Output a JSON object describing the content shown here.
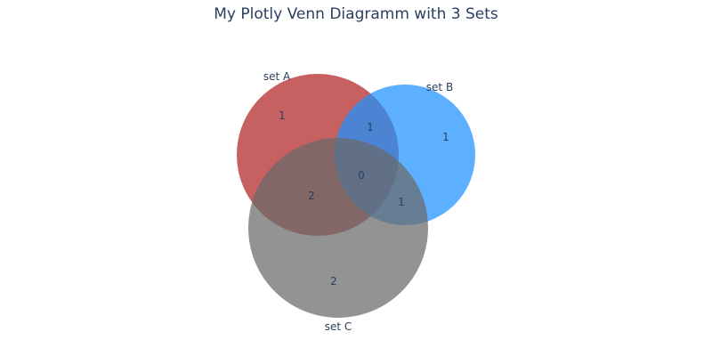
{
  "title": "My Plotly Venn Diagramm with 3 Sets",
  "sets": [
    {
      "key": "a",
      "label": "set A",
      "color": "#b22222"
    },
    {
      "key": "b",
      "label": "set B",
      "color": "#1e90ff"
    },
    {
      "key": "c",
      "label": "set C",
      "color": "#696969"
    }
  ],
  "regions": {
    "a_only": "1",
    "b_only": "1",
    "c_only": "2",
    "a_and_b_only": "1",
    "a_and_c_only": "2",
    "b_and_c_only": "1",
    "a_and_b_and_c": "0"
  }
}
